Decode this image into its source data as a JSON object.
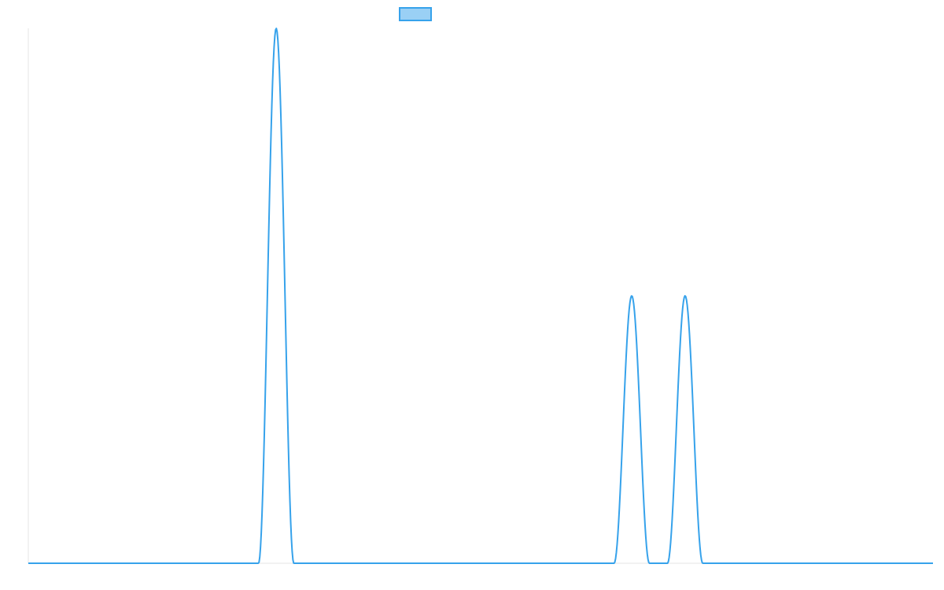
{
  "chart_data": {
    "type": "line",
    "title": "",
    "xlabel": "",
    "ylabel": "",
    "x_range": [
      0,
      1
    ],
    "ylim": [
      0,
      1
    ],
    "grid": false,
    "legend": {
      "placement": "top-center",
      "entries": [
        {
          "name": "",
          "color": "#36A2EB",
          "fill": "#9AD0F5"
        }
      ]
    },
    "series": [
      {
        "color": "#36A2EB",
        "peaks": [
          {
            "center": 0.274,
            "half_width": 0.0195,
            "height": 1.0
          },
          {
            "center": 0.667,
            "half_width": 0.0195,
            "height": 0.5
          },
          {
            "center": 0.726,
            "half_width": 0.0195,
            "height": 0.5
          }
        ]
      }
    ]
  }
}
